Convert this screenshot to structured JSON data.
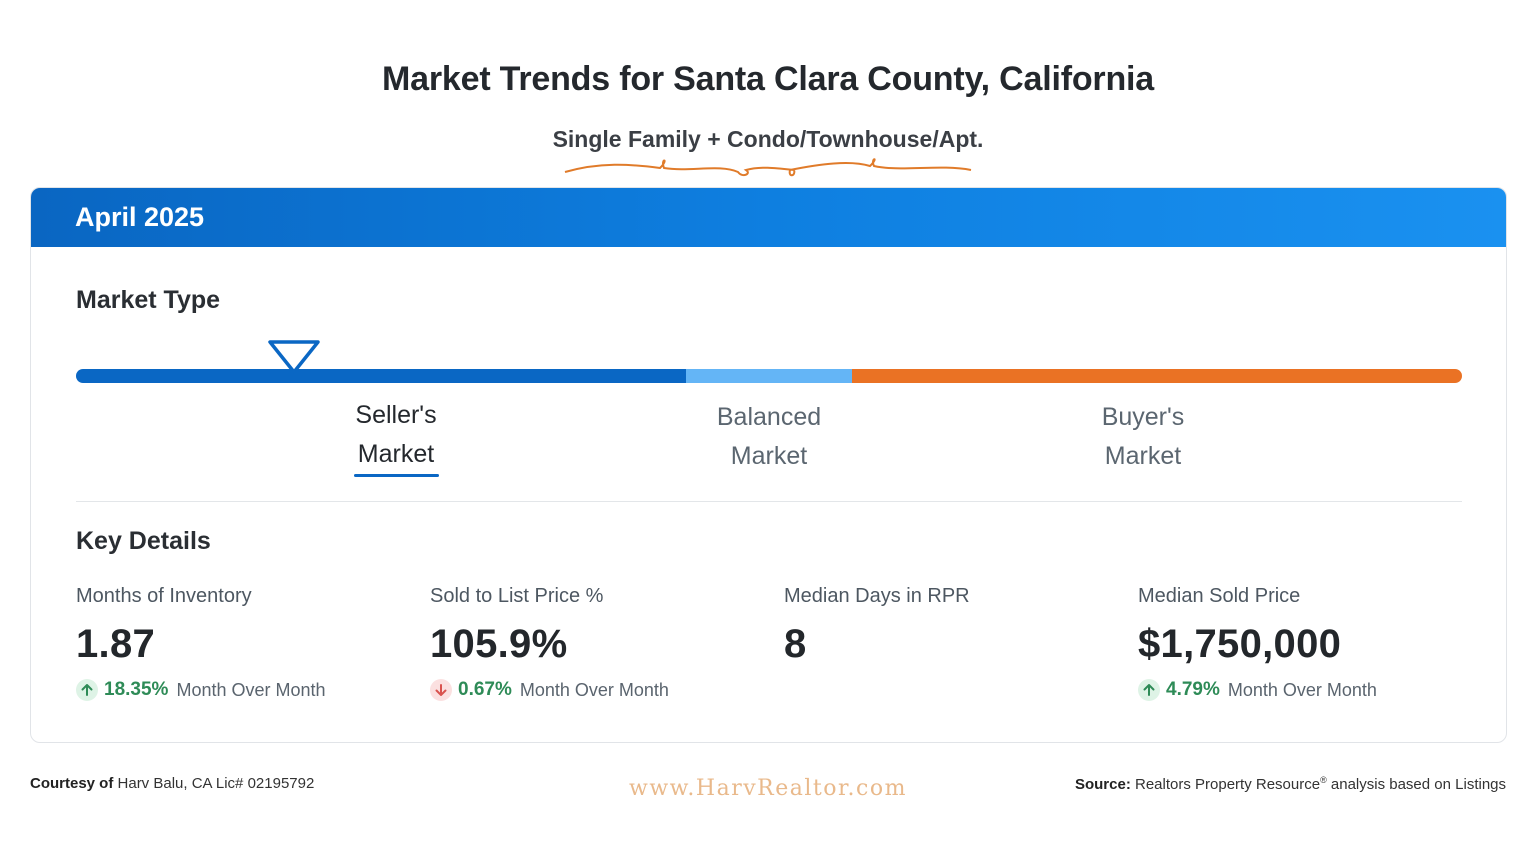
{
  "header": {
    "title": "Market Trends for Santa Clara County, California",
    "subtitle": "Single Family + Condo/Townhouse/Apt."
  },
  "card": {
    "period": "April 2025",
    "market_type": {
      "heading": "Market Type",
      "indicator_position_pct": 15.7,
      "segments": [
        {
          "name": "Seller's Market",
          "color": "#0a67c4"
        },
        {
          "name": "Balanced Market",
          "color": "#64b5f6"
        },
        {
          "name": "Buyer's Market",
          "color": "#ea7224"
        }
      ],
      "labels": {
        "seller_line1": "Seller's",
        "seller_line2": "Market",
        "balanced_line1": "Balanced",
        "balanced_line2": "Market",
        "buyer_line1": "Buyer's",
        "buyer_line2": "Market"
      },
      "selected": "Seller's Market"
    },
    "key_details": {
      "heading": "Key Details",
      "stats": [
        {
          "label": "Months of Inventory",
          "value": "1.87",
          "change": "18.35%",
          "direction": "up",
          "change_label": "Month Over Month"
        },
        {
          "label": "Sold to List Price %",
          "value": "105.9%",
          "change": "0.67%",
          "direction": "down",
          "change_label": "Month Over Month"
        },
        {
          "label": "Median Days in RPR",
          "value": "8"
        },
        {
          "label": "Median Sold Price",
          "value": "$1,750,000",
          "change": "4.79%",
          "direction": "up",
          "change_label": "Month Over Month"
        }
      ]
    }
  },
  "footer": {
    "courtesy_prefix": "Courtesy of",
    "courtesy_text": "Harv Balu, CA Lic# 02195792",
    "watermark": "www.HarvRealtor.com",
    "source_prefix": "Source:",
    "source_text_a": "Realtors Property Resource",
    "source_reg": "®",
    "source_text_b": "analysis based on Listings"
  },
  "colors": {
    "accent_blue": "#0a67c4",
    "light_blue": "#64b5f6",
    "orange": "#ea7224",
    "up_green": "#2e8b57",
    "down_red": "#d9534f"
  }
}
